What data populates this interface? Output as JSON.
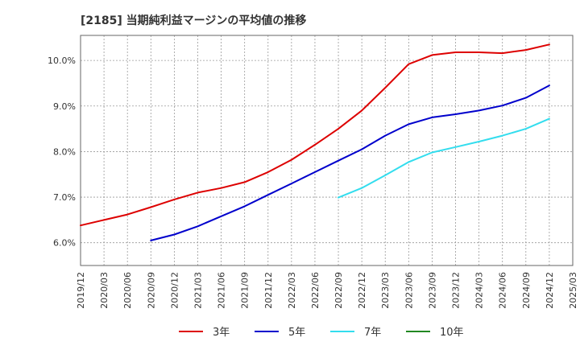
{
  "chart_data": {
    "type": "line",
    "title": "[2185]  当期純利益マージンの平均値の推移",
    "xlabel": "",
    "ylabel": "",
    "x_ticks": [
      "2019/12",
      "2020/03",
      "2020/06",
      "2020/09",
      "2020/12",
      "2021/03",
      "2021/06",
      "2021/09",
      "2021/12",
      "2022/03",
      "2022/06",
      "2022/09",
      "2022/12",
      "2023/03",
      "2023/06",
      "2023/09",
      "2023/12",
      "2024/03",
      "2024/06",
      "2024/09",
      "2024/12",
      "2025/03"
    ],
    "y_ticks": [
      "6.0%",
      "7.0%",
      "8.0%",
      "9.0%",
      "10.0%"
    ],
    "y_tick_values": [
      6.0,
      7.0,
      8.0,
      9.0,
      10.0
    ],
    "ylim": [
      5.5,
      10.55
    ],
    "grid": true,
    "legend_position": "bottom",
    "series": [
      {
        "name": "3年",
        "color": "#dd0000",
        "x": [
          "2019/12",
          "2020/03",
          "2020/06",
          "2020/09",
          "2020/12",
          "2021/03",
          "2021/06",
          "2021/09",
          "2021/12",
          "2022/03",
          "2022/06",
          "2022/09",
          "2022/12",
          "2023/03",
          "2023/06",
          "2023/09",
          "2023/12",
          "2024/03",
          "2024/06",
          "2024/09",
          "2024/12"
        ],
        "values": [
          6.38,
          6.5,
          6.62,
          6.78,
          6.95,
          7.1,
          7.2,
          7.33,
          7.55,
          7.82,
          8.15,
          8.5,
          8.9,
          9.4,
          9.92,
          10.12,
          10.18,
          10.18,
          10.16,
          10.23,
          10.35
        ]
      },
      {
        "name": "5年",
        "color": "#0000cc",
        "x": [
          "2020/09",
          "2020/12",
          "2021/03",
          "2021/06",
          "2021/09",
          "2021/12",
          "2022/03",
          "2022/06",
          "2022/09",
          "2022/12",
          "2023/03",
          "2023/06",
          "2023/09",
          "2023/12",
          "2024/03",
          "2024/06",
          "2024/09",
          "2024/12"
        ],
        "values": [
          6.05,
          6.18,
          6.36,
          6.58,
          6.8,
          7.05,
          7.3,
          7.55,
          7.8,
          8.05,
          8.35,
          8.6,
          8.75,
          8.82,
          8.9,
          9.01,
          9.18,
          9.45
        ]
      },
      {
        "name": "7年",
        "color": "#33ddee",
        "x": [
          "2022/09",
          "2022/12",
          "2023/03",
          "2023/06",
          "2023/09",
          "2023/12",
          "2024/03",
          "2024/06",
          "2024/09",
          "2024/12"
        ],
        "values": [
          6.99,
          7.2,
          7.48,
          7.77,
          7.98,
          8.1,
          8.22,
          8.35,
          8.5,
          8.72
        ]
      },
      {
        "name": "10年",
        "color": "#228822",
        "x": [],
        "values": []
      }
    ]
  }
}
